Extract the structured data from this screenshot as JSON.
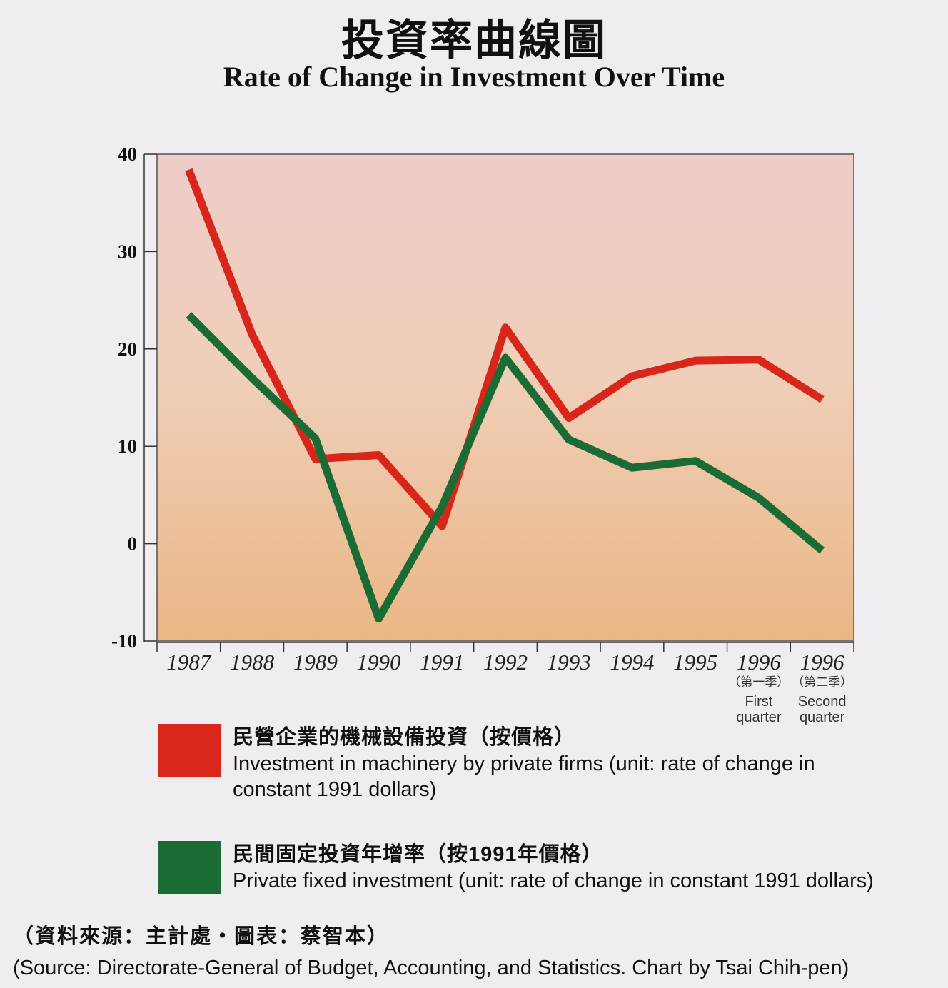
{
  "title_zh": "投資率曲線圖",
  "title_en": "Rate of Change in Investment Over Time",
  "chart_data": {
    "type": "line",
    "x": [
      "1987",
      "1988",
      "1989",
      "1990",
      "1991",
      "1992",
      "1993",
      "1994",
      "1995",
      "1996",
      "1996"
    ],
    "x_sub": [
      {
        "zh": "",
        "en1": "",
        "en2": ""
      },
      {
        "zh": "",
        "en1": "",
        "en2": ""
      },
      {
        "zh": "",
        "en1": "",
        "en2": ""
      },
      {
        "zh": "",
        "en1": "",
        "en2": ""
      },
      {
        "zh": "",
        "en1": "",
        "en2": ""
      },
      {
        "zh": "",
        "en1": "",
        "en2": ""
      },
      {
        "zh": "",
        "en1": "",
        "en2": ""
      },
      {
        "zh": "",
        "en1": "",
        "en2": ""
      },
      {
        "zh": "",
        "en1": "",
        "en2": ""
      },
      {
        "zh": "（第一季）",
        "en1": "First",
        "en2": "quarter"
      },
      {
        "zh": "（第二季）",
        "en1": "Second",
        "en2": "quarter"
      }
    ],
    "ylim": [
      -10,
      40
    ],
    "yticks": [
      "40",
      "30",
      "20",
      "10",
      "0",
      "-10"
    ],
    "ytick_values": [
      40,
      30,
      20,
      10,
      0,
      -10
    ],
    "series": [
      {
        "name_zh": "民營企業的機械設備投資（按價格）",
        "name": "Investment in machinery by private firms (unit: rate of change in constant 1991 dollars)",
        "color": "#d8261b",
        "values": [
          38.4,
          21.5,
          8.7,
          9.1,
          1.8,
          22.2,
          12.9,
          17.2,
          18.8,
          18.9,
          14.8
        ]
      },
      {
        "name_zh": "民間固定投資年增率（按1991年價格）",
        "name": "Private fixed investment (unit: rate of change in constant 1991 dollars)",
        "color": "#1b6b35",
        "values": [
          23.5,
          17.0,
          10.8,
          -7.7,
          3.8,
          19.1,
          10.7,
          7.8,
          8.5,
          4.7,
          -0.7
        ]
      }
    ]
  },
  "legend": [
    {
      "color": "#d8261b",
      "zh": "民營企業的機械設備投資（按價格）",
      "en_line1": "Investment in machinery by private firms (unit: rate of change in",
      "en_line2": "constant 1991 dollars)"
    },
    {
      "color": "#1b6b35",
      "zh": "民間固定投資年增率（按1991年價格）",
      "en_line1": "Private fixed investment (unit: rate of change in constant 1991 dollars)",
      "en_line2": ""
    }
  ],
  "source_zh": "（資料來源：主計處・圖表：蔡智本）",
  "source_en": "(Source: Directorate-General of Budget, Accounting, and Statistics. Chart by Tsai Chih-pen)"
}
